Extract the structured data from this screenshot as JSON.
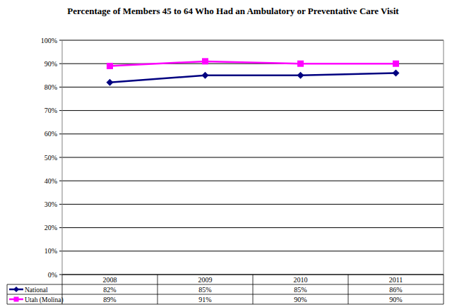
{
  "chart_data": {
    "type": "line",
    "title": "Percentage of Members 45 to 64 Who Had an Ambulatory or Preventative Care Visit",
    "categories": [
      "2008",
      "2009",
      "2010",
      "2011"
    ],
    "series": [
      {
        "name": "National",
        "color": "#000080",
        "marker": "diamond",
        "line_style": "solid",
        "values": [
          82,
          85,
          85,
          86
        ],
        "value_labels": [
          "82%",
          "85%",
          "85%",
          "86%"
        ]
      },
      {
        "name": "Utah (Molina)",
        "color": "#ff00ff",
        "marker": "square",
        "line_style": "solid",
        "values": [
          89,
          91,
          90,
          90
        ],
        "value_labels": [
          "89%",
          "91%",
          "90%",
          "90%"
        ]
      }
    ],
    "ylim": [
      0,
      100
    ],
    "yticks": [
      {
        "value": 0,
        "label": "0%"
      },
      {
        "value": 10,
        "label": "10%"
      },
      {
        "value": 20,
        "label": "20%"
      },
      {
        "value": 30,
        "label": "30%"
      },
      {
        "value": 40,
        "label": "40%"
      },
      {
        "value": 50,
        "label": "50%"
      },
      {
        "value": 60,
        "label": "60%"
      },
      {
        "value": 70,
        "label": "70%"
      },
      {
        "value": 80,
        "label": "80%"
      },
      {
        "value": 90,
        "label": "90%"
      },
      {
        "value": 100,
        "label": "100%"
      }
    ],
    "grid": true
  }
}
